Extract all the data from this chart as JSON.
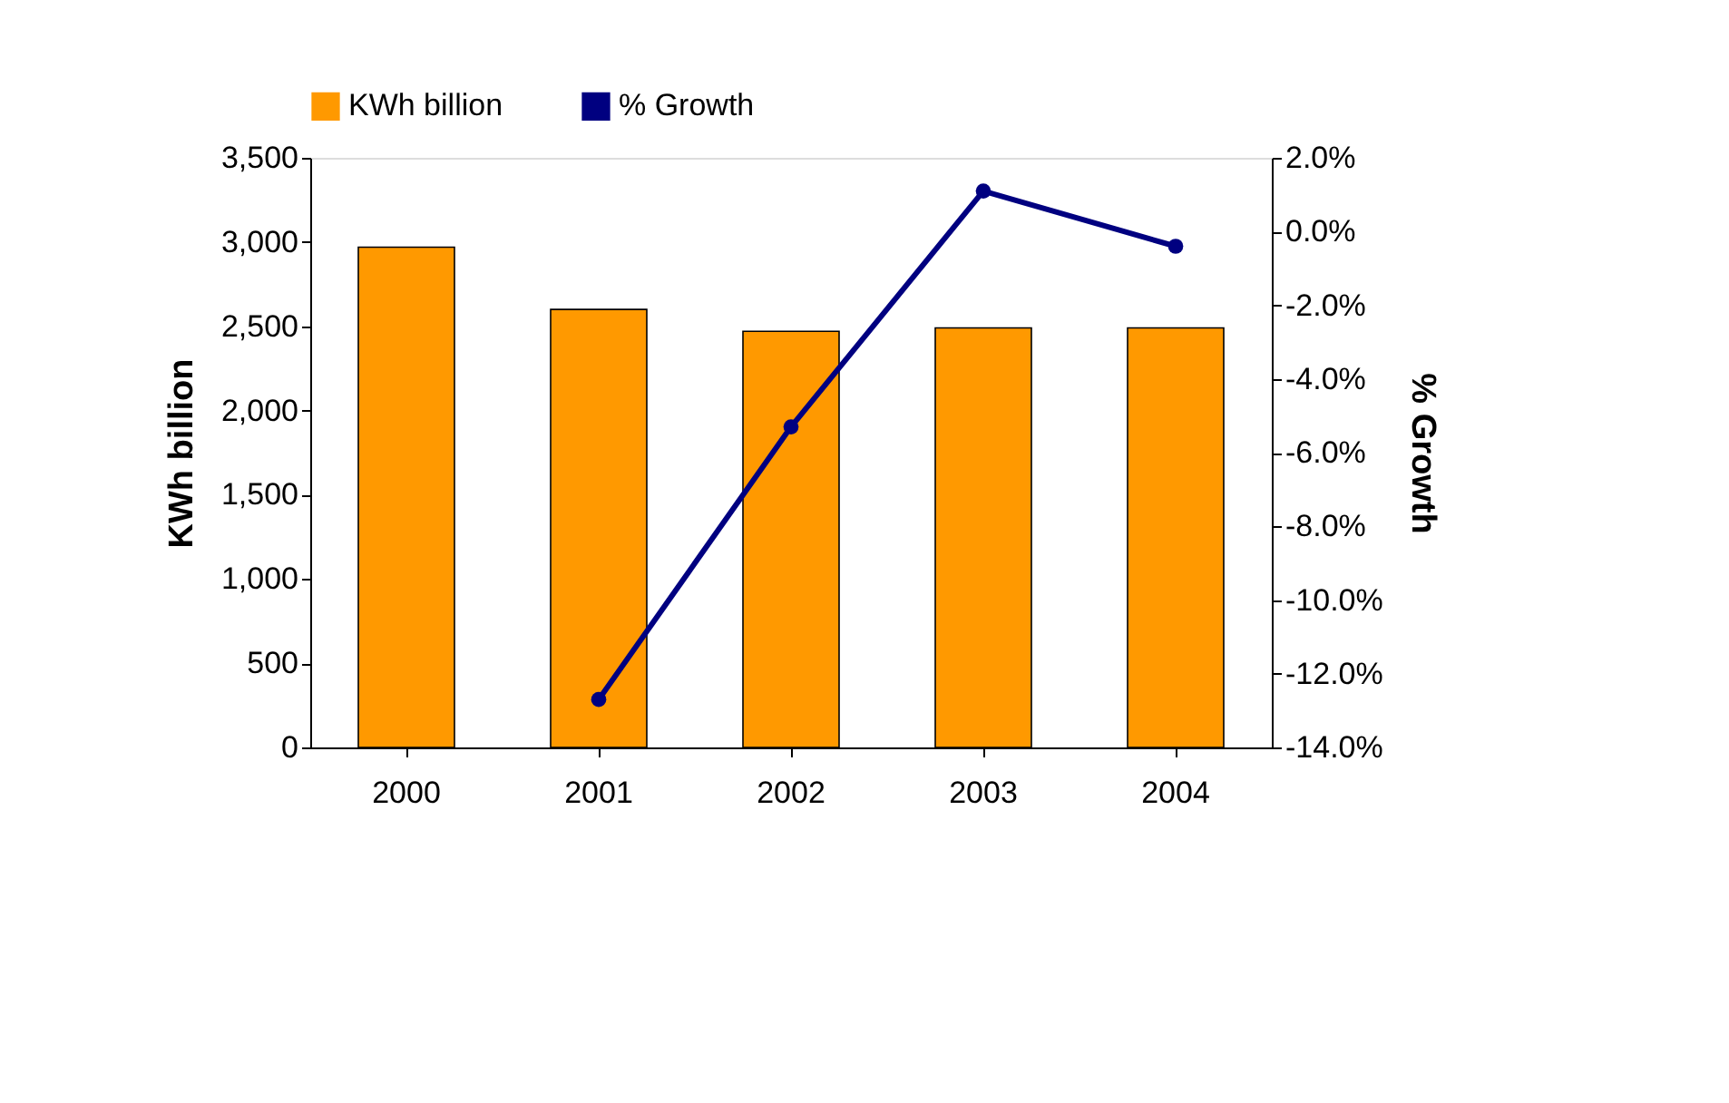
{
  "chart_data": {
    "type": "bar",
    "categories": [
      "2000",
      "2001",
      "2002",
      "2003",
      "2004"
    ],
    "ylabel": "KWh billion",
    "y2label": "% Growth",
    "series": [
      {
        "name": "KWh billion",
        "color": "#ff9900",
        "values": [
          2970,
          2600,
          2470,
          2490,
          2490
        ]
      },
      {
        "name": "% Growth",
        "type": "line",
        "axis": "y2",
        "color": "#000080",
        "values": [
          null,
          -12.7,
          -5.3,
          1.1,
          -0.4
        ]
      }
    ],
    "ylim": [
      0,
      3500
    ],
    "yticks": [
      {
        "value": 0,
        "label": "0"
      },
      {
        "value": 500,
        "label": "500"
      },
      {
        "value": 1000,
        "label": "1,000"
      },
      {
        "value": 1500,
        "label": "1,500"
      },
      {
        "value": 2000,
        "label": "2,000"
      },
      {
        "value": 2500,
        "label": "2,500"
      },
      {
        "value": 3000,
        "label": "3,000"
      },
      {
        "value": 3500,
        "label": "3,500"
      }
    ],
    "y2lim": [
      -14,
      2
    ],
    "y2ticks": [
      {
        "value": -14,
        "label": "-14.0%"
      },
      {
        "value": -12,
        "label": "-12.0%"
      },
      {
        "value": -10,
        "label": "-10.0%"
      },
      {
        "value": -8,
        "label": "-8.0%"
      },
      {
        "value": -6,
        "label": "-6.0%"
      },
      {
        "value": -4,
        "label": "-4.0%"
      },
      {
        "value": -2,
        "label": "-2.0%"
      },
      {
        "value": 0,
        "label": "0.0%"
      },
      {
        "value": 2,
        "label": "2.0%"
      }
    ],
    "legend": "top",
    "grid": false,
    "marker": "circle",
    "line_style": "solid"
  }
}
